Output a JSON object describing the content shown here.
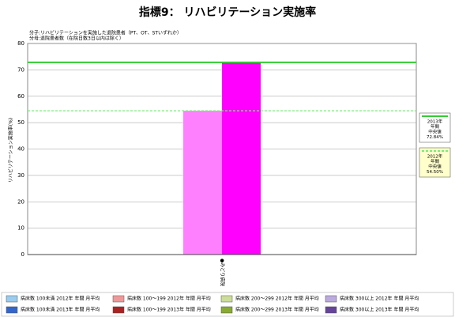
{
  "chart_data": {
    "type": "bar",
    "title": "指標9： リハビリテーション実施率",
    "subtitle_lines": [
      "分子:リハビリテーションを実施した退院患者（PT、OT、STいずれか）",
      "分母:退院患者数（在院日数3日以内は除く）"
    ],
    "y_label": "リハビリテーション実施率(%)",
    "categories": [
      "●みどり病院"
    ],
    "series": [
      {
        "color": "#ff80ff",
        "values": [
          54.5
        ]
      },
      {
        "color": "#ff00ff",
        "values": [
          72.84
        ]
      }
    ],
    "ylim": [
      0,
      80
    ],
    "yticks": [
      0,
      10,
      20,
      30,
      40,
      50,
      60,
      70,
      80
    ],
    "grid": true,
    "reference_lines": [
      {
        "value": 72.84,
        "label_lines": [
          "2013年",
          "年間",
          "中央値"
        ],
        "value_label": "72.84%",
        "color": "#33cc33",
        "style": "solid",
        "box_fill": "#ffffff"
      },
      {
        "value": 54.5,
        "label_lines": [
          "2012年",
          "年間",
          "中央値"
        ],
        "value_label": "54.50%",
        "color": "#77ee77",
        "style": "dashed",
        "box_fill": "#ffffcc"
      }
    ],
    "legend_entries": [
      {
        "label": "病床数 100未満 2012年 年間 月平均",
        "color": "#99ccee"
      },
      {
        "label": "病床数 100～199 2012年 年間 月平均",
        "color": "#ee9999"
      },
      {
        "label": "病床数 200～299 2012年 年間 月平均",
        "color": "#ccdd99"
      },
      {
        "label": "病床数 300以上 2012年 年間 月平均",
        "color": "#bbaadd"
      },
      {
        "label": "病床数 100未満 2013年 年間 月平均",
        "color": "#3366cc"
      },
      {
        "label": "病床数 100～199 2013年 年間 月平均",
        "color": "#aa2222"
      },
      {
        "label": "病床数 200～299 2013年 年間 月平均",
        "color": "#88aa33"
      },
      {
        "label": "病床数 300以上 2013年 年間 月平均",
        "color": "#664499"
      }
    ]
  }
}
